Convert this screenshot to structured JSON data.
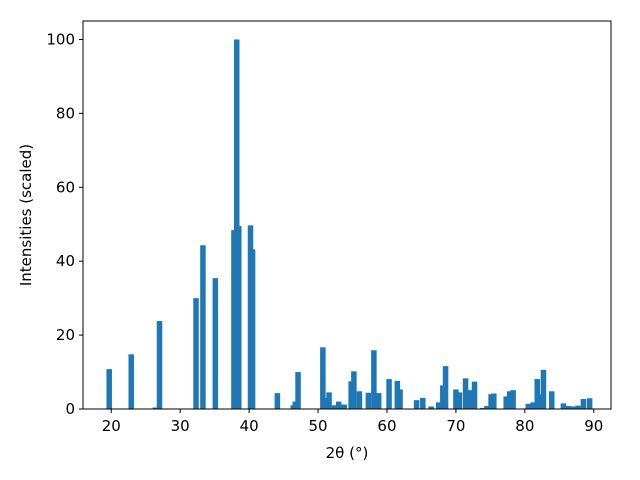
{
  "chart_data": {
    "type": "bar",
    "xlabel": "2θ (°)",
    "ylabel": "Intensities (scaled)",
    "color": "#1f77b4",
    "x": [
      19.7,
      22.9,
      26.4,
      27.0,
      32.3,
      33.3,
      35.1,
      37.8,
      38.2,
      38.5,
      40.2,
      40.5,
      44.1,
      46.4,
      46.7,
      47.1,
      50.7,
      51.1,
      51.6,
      52.4,
      53.0,
      53.8,
      54.8,
      55.2,
      56.0,
      57.3,
      58.1,
      58.8,
      60.3,
      61.5,
      61.9,
      64.3,
      65.2,
      66.4,
      67.5,
      68.1,
      68.5,
      70.0,
      70.5,
      71.4,
      72.0,
      72.7,
      73.9,
      74.5,
      75.1,
      75.5,
      77.3,
      77.8,
      78.3,
      80.5,
      81.2,
      81.8,
      82.3,
      82.7,
      83.9,
      85.6,
      86.3,
      86.9,
      87.7,
      88.5,
      89.4
    ],
    "values": [
      10.8,
      14.8,
      0.4,
      23.8,
      30,
      44.3,
      35.4,
      48.4,
      100,
      49.5,
      49.7,
      43.2,
      4.3,
      1.0,
      2.0,
      10.0,
      16.7,
      3.0,
      4.5,
      1.0,
      2.0,
      1.2,
      7.5,
      10.2,
      4.8,
      4.4,
      15.9,
      4.3,
      8.1,
      7.6,
      5.3,
      2.4,
      3.0,
      0.7,
      1.8,
      6.4,
      11.6,
      5.3,
      4.5,
      8.3,
      5.1,
      7.4,
      0.3,
      0.8,
      4.0,
      4.2,
      3.4,
      4.8,
      5.1,
      1.4,
      1.8,
      8.1,
      4.0,
      10.6,
      4.8,
      1.5,
      0.8,
      0.7,
      0.9,
      2.7,
      2.9
    ],
    "xlim": [
      15.9,
      92.5
    ],
    "ylim": [
      0,
      105
    ],
    "xticks": [
      20,
      30,
      40,
      50,
      60,
      70,
      80,
      90
    ],
    "yticks": [
      0,
      20,
      40,
      60,
      80,
      100
    ]
  }
}
